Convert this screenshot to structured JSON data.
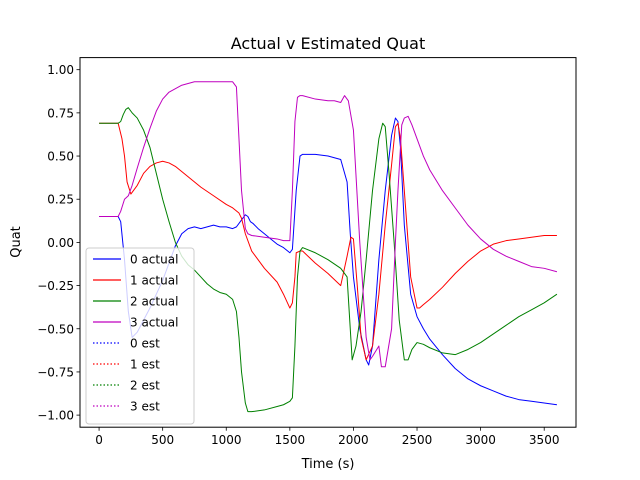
{
  "chart_data": {
    "type": "line",
    "title": "Actual v Estimated Quat",
    "xlabel": "Time (s)",
    "ylabel": "Quat",
    "xlim": [
      -150,
      3750
    ],
    "ylim": [
      -1.07,
      1.07
    ],
    "xticks": [
      0,
      500,
      1000,
      1500,
      2000,
      2500,
      3000,
      3500
    ],
    "yticks": [
      -1.0,
      -0.75,
      -0.5,
      -0.25,
      0.0,
      0.25,
      0.5,
      0.75,
      1.0
    ],
    "xtick_labels": [
      "0",
      "500",
      "1000",
      "1500",
      "2000",
      "2500",
      "3000",
      "3500"
    ],
    "ytick_labels": [
      "−1.00",
      "−0.75",
      "−0.50",
      "−0.25",
      "0.00",
      "0.25",
      "0.50",
      "0.75",
      "1.00"
    ],
    "grid": false,
    "legend_position": "lower-left",
    "series": [
      {
        "name": "0 actual",
        "color": "#0000ff",
        "style": "solid",
        "x": [
          0,
          150,
          170,
          200,
          230,
          260,
          300,
          350,
          400,
          450,
          500,
          550,
          600,
          650,
          700,
          750,
          800,
          850,
          900,
          950,
          1000,
          1050,
          1080,
          1120,
          1150,
          1170,
          1190,
          1210,
          1250,
          1300,
          1350,
          1400,
          1450,
          1500,
          1520,
          1550,
          1580,
          1600,
          1700,
          1800,
          1900,
          1950,
          1975,
          2000,
          2050,
          2100,
          2120,
          2150,
          2200,
          2250,
          2300,
          2330,
          2350,
          2370,
          2400,
          2450,
          2500,
          2550,
          2600,
          2700,
          2800,
          2900,
          3000,
          3100,
          3200,
          3300,
          3400,
          3500,
          3600
        ],
        "y": [
          0.15,
          0.15,
          0.12,
          -0.1,
          -0.4,
          -0.55,
          -0.52,
          -0.45,
          -0.38,
          -0.3,
          -0.22,
          -0.12,
          -0.02,
          0.05,
          0.08,
          0.09,
          0.08,
          0.09,
          0.1,
          0.09,
          0.09,
          0.08,
          0.09,
          0.13,
          0.16,
          0.15,
          0.12,
          0.11,
          0.08,
          0.05,
          0.02,
          -0.01,
          -0.03,
          -0.06,
          -0.04,
          0.3,
          0.5,
          0.51,
          0.51,
          0.5,
          0.48,
          0.35,
          0.05,
          -0.2,
          -0.5,
          -0.68,
          -0.71,
          -0.6,
          -0.1,
          0.3,
          0.62,
          0.72,
          0.7,
          0.55,
          0.1,
          -0.3,
          -0.43,
          -0.5,
          -0.56,
          -0.65,
          -0.73,
          -0.79,
          -0.83,
          -0.86,
          -0.89,
          -0.91,
          -0.92,
          -0.93,
          -0.94
        ]
      },
      {
        "name": "1 actual",
        "color": "#ff0000",
        "style": "solid",
        "x": [
          0,
          150,
          180,
          200,
          220,
          250,
          300,
          350,
          400,
          450,
          500,
          550,
          600,
          700,
          800,
          900,
          1000,
          1050,
          1100,
          1120,
          1150,
          1200,
          1300,
          1400,
          1450,
          1500,
          1520,
          1540,
          1550,
          1580,
          1600,
          1700,
          1800,
          1900,
          1950,
          1980,
          2000,
          2030,
          2060,
          2100,
          2150,
          2200,
          2250,
          2300,
          2330,
          2350,
          2370,
          2400,
          2450,
          2500,
          2520,
          2550,
          2600,
          2700,
          2800,
          2900,
          3000,
          3100,
          3200,
          3300,
          3400,
          3500,
          3600
        ],
        "y": [
          0.69,
          0.69,
          0.6,
          0.5,
          0.35,
          0.28,
          0.33,
          0.4,
          0.44,
          0.46,
          0.47,
          0.46,
          0.44,
          0.38,
          0.32,
          0.27,
          0.22,
          0.2,
          0.17,
          0.14,
          0.05,
          -0.05,
          -0.15,
          -0.23,
          -0.3,
          -0.38,
          -0.35,
          -0.2,
          -0.06,
          -0.05,
          -0.05,
          -0.12,
          -0.18,
          -0.25,
          -0.08,
          0.03,
          0.02,
          -0.25,
          -0.55,
          -0.68,
          -0.6,
          -0.3,
          0.1,
          0.45,
          0.67,
          0.69,
          0.6,
          0.3,
          -0.2,
          -0.38,
          -0.38,
          -0.36,
          -0.33,
          -0.26,
          -0.18,
          -0.11,
          -0.05,
          -0.01,
          0.01,
          0.02,
          0.03,
          0.04,
          0.04
        ]
      },
      {
        "name": "2 actual",
        "color": "#008000",
        "style": "solid",
        "x": [
          0,
          150,
          170,
          190,
          210,
          230,
          260,
          300,
          350,
          400,
          450,
          500,
          550,
          600,
          650,
          700,
          750,
          800,
          850,
          900,
          950,
          1000,
          1050,
          1080,
          1100,
          1120,
          1150,
          1170,
          1200,
          1300,
          1400,
          1450,
          1500,
          1520,
          1540,
          1560,
          1580,
          1600,
          1700,
          1800,
          1900,
          1950,
          1990,
          2020,
          2060,
          2100,
          2150,
          2200,
          2230,
          2250,
          2280,
          2320,
          2360,
          2400,
          2430,
          2460,
          2500,
          2550,
          2600,
          2700,
          2800,
          2900,
          3000,
          3100,
          3200,
          3300,
          3400,
          3500,
          3600
        ],
        "y": [
          0.69,
          0.69,
          0.7,
          0.74,
          0.77,
          0.78,
          0.75,
          0.72,
          0.65,
          0.55,
          0.4,
          0.25,
          0.12,
          0.0,
          -0.08,
          -0.13,
          -0.16,
          -0.2,
          -0.24,
          -0.27,
          -0.29,
          -0.3,
          -0.33,
          -0.4,
          -0.55,
          -0.75,
          -0.93,
          -0.98,
          -0.98,
          -0.97,
          -0.95,
          -0.94,
          -0.92,
          -0.9,
          -0.6,
          -0.2,
          -0.05,
          -0.03,
          -0.06,
          -0.1,
          -0.15,
          -0.2,
          -0.68,
          -0.6,
          -0.4,
          -0.1,
          0.3,
          0.6,
          0.69,
          0.67,
          0.4,
          0.0,
          -0.45,
          -0.68,
          -0.68,
          -0.62,
          -0.58,
          -0.59,
          -0.61,
          -0.64,
          -0.65,
          -0.62,
          -0.58,
          -0.53,
          -0.48,
          -0.43,
          -0.39,
          -0.35,
          -0.3
        ]
      },
      {
        "name": "3 actual",
        "color": "#bf00bf",
        "style": "solid",
        "x": [
          0,
          150,
          170,
          200,
          230,
          260,
          300,
          350,
          400,
          450,
          500,
          550,
          600,
          650,
          700,
          750,
          800,
          900,
          1000,
          1050,
          1080,
          1100,
          1120,
          1150,
          1170,
          1200,
          1300,
          1400,
          1450,
          1500,
          1520,
          1540,
          1560,
          1580,
          1600,
          1700,
          1800,
          1850,
          1900,
          1930,
          1960,
          2000,
          2050,
          2100,
          2130,
          2150,
          2200,
          2220,
          2250,
          2300,
          2330,
          2350,
          2380,
          2400,
          2430,
          2460,
          2500,
          2550,
          2600,
          2700,
          2800,
          2900,
          3000,
          3100,
          3200,
          3300,
          3400,
          3500,
          3600
        ],
        "y": [
          0.15,
          0.15,
          0.18,
          0.25,
          0.27,
          0.33,
          0.43,
          0.55,
          0.66,
          0.76,
          0.83,
          0.87,
          0.89,
          0.91,
          0.92,
          0.93,
          0.93,
          0.93,
          0.93,
          0.93,
          0.9,
          0.6,
          0.3,
          0.08,
          0.05,
          0.04,
          0.03,
          0.02,
          0.01,
          0.01,
          0.3,
          0.7,
          0.84,
          0.85,
          0.85,
          0.83,
          0.82,
          0.82,
          0.81,
          0.85,
          0.82,
          0.65,
          0.0,
          -0.55,
          -0.68,
          -0.66,
          -0.6,
          -0.72,
          -0.72,
          -0.5,
          0.0,
          0.3,
          0.68,
          0.72,
          0.73,
          0.68,
          0.6,
          0.5,
          0.42,
          0.3,
          0.2,
          0.1,
          0.02,
          -0.04,
          -0.08,
          -0.11,
          -0.14,
          -0.15,
          -0.17
        ]
      },
      {
        "name": "0 est",
        "color": "#0000ff",
        "style": "dotted",
        "x": [],
        "y": []
      },
      {
        "name": "1 est",
        "color": "#ff0000",
        "style": "dotted",
        "x": [],
        "y": []
      },
      {
        "name": "2 est",
        "color": "#008000",
        "style": "dotted",
        "x": [],
        "y": []
      },
      {
        "name": "3 est",
        "color": "#bf00bf",
        "style": "dotted",
        "x": [],
        "y": []
      }
    ]
  }
}
